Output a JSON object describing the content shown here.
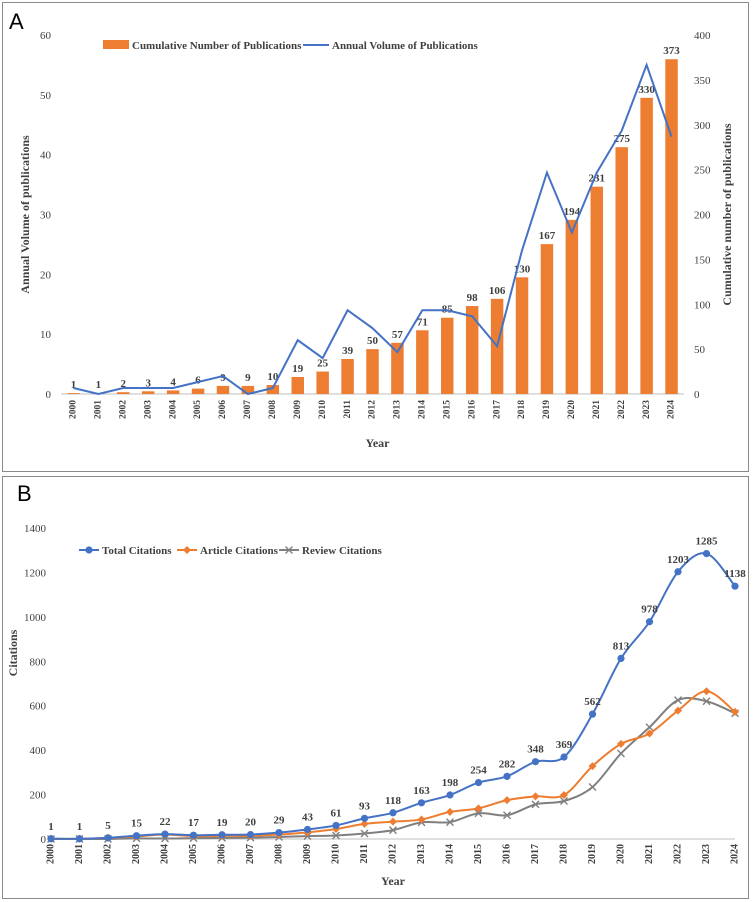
{
  "panels": {
    "a_label": "A",
    "b_label": "B"
  },
  "colors": {
    "orange": "#ED7D31",
    "blue": "#4472C4",
    "gray": "#7F7F7F",
    "axis": "#bfbfbf",
    "text": "#404040"
  },
  "chart_data": [
    {
      "type": "bar",
      "combo_with": "line",
      "categories": [
        "2000",
        "2001",
        "2002",
        "2003",
        "2004",
        "2005",
        "2006",
        "2007",
        "2008",
        "2009",
        "2010",
        "2011",
        "2012",
        "2013",
        "2014",
        "2015",
        "2016",
        "2017",
        "2018",
        "2019",
        "2020",
        "2021",
        "2022",
        "2023",
        "2024"
      ],
      "series": [
        {
          "name": "Cumulative Number of Publications",
          "type": "bar",
          "axis": "right",
          "values": [
            1,
            1,
            2,
            3,
            4,
            6,
            9,
            9,
            10,
            19,
            25,
            39,
            50,
            57,
            71,
            85,
            98,
            106,
            130,
            167,
            194,
            231,
            275,
            330,
            373
          ]
        },
        {
          "name": "Annual Volume of Publications",
          "type": "line",
          "axis": "left",
          "values": [
            1,
            0,
            1,
            1,
            1,
            2,
            3,
            0,
            1,
            9,
            6,
            14,
            11,
            7,
            14,
            14,
            13,
            8,
            24,
            37,
            27,
            37,
            44,
            55,
            43
          ]
        }
      ],
      "xlabel": "Year",
      "ylabel": "Annual Volume of publications",
      "y2label": "Cumulative number of publications",
      "ylim": [
        0,
        60
      ],
      "y_ticks": [
        "0",
        "10",
        "20",
        "30",
        "40",
        "50",
        "60"
      ],
      "y2lim": [
        0,
        400
      ],
      "y2_ticks": [
        "0",
        "50",
        "100",
        "150",
        "200",
        "250",
        "300",
        "350",
        "400"
      ],
      "legend_position": "top-left",
      "grid": false
    },
    {
      "type": "line",
      "categories": [
        "2000",
        "2001",
        "2002",
        "2003",
        "2004",
        "2005",
        "2006",
        "2007",
        "2008",
        "2009",
        "2010",
        "2011",
        "2012",
        "2013",
        "2014",
        "2015",
        "2016",
        "2017",
        "2018",
        "2019",
        "2020",
        "2021",
        "2022",
        "2023",
        "2024"
      ],
      "series": [
        {
          "name": "Total Citations",
          "marker": "circle",
          "values": [
            1,
            1,
            5,
            15,
            22,
            17,
            19,
            20,
            29,
            43,
            61,
            93,
            118,
            163,
            198,
            254,
            282,
            348,
            369,
            562,
            813,
            978,
            1203,
            1285,
            1138
          ]
        },
        {
          "name": "Article Citations",
          "marker": "diamond",
          "values": [
            1,
            1,
            5,
            12,
            20,
            13,
            14,
            14,
            20,
            30,
            45,
            68,
            78,
            88,
            122,
            138,
            175,
            192,
            198,
            328,
            428,
            475,
            578,
            665,
            572
          ]
        },
        {
          "name": "Review Citations",
          "marker": "x",
          "values": [
            0,
            0,
            0,
            3,
            2,
            4,
            5,
            6,
            9,
            13,
            16,
            25,
            40,
            75,
            76,
            116,
            107,
            156,
            171,
            234,
            385,
            503,
            625,
            620,
            566
          ]
        }
      ],
      "xlabel": "Year",
      "ylabel": "Citations",
      "ylim": [
        0,
        1400
      ],
      "y_ticks": [
        "0",
        "200",
        "400",
        "600",
        "800",
        "1000",
        "1200",
        "1400"
      ],
      "legend_position": "top-left",
      "grid": false
    }
  ]
}
